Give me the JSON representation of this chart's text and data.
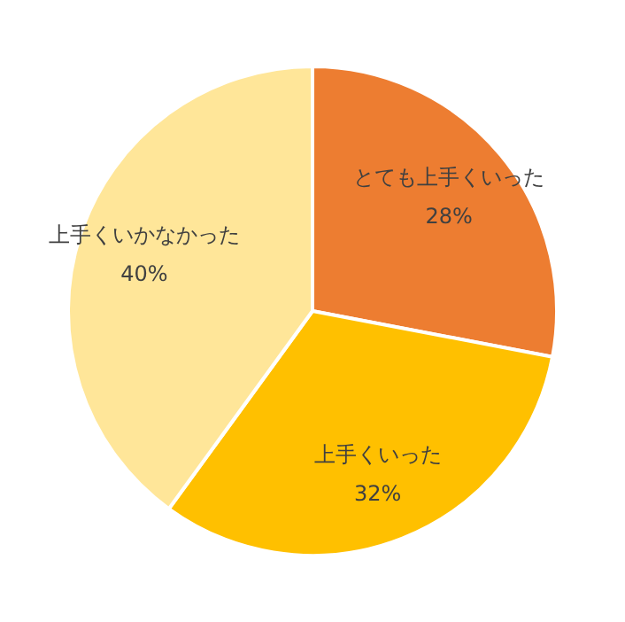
{
  "chart_data": {
    "type": "pie",
    "categories": [
      "とても上手くいった",
      "上手くいった",
      "上手くいかなかった"
    ],
    "values": [
      28,
      32,
      40
    ],
    "colors": [
      "#ed7d31",
      "#ffc000",
      "#ffe699"
    ],
    "value_labels": [
      "28%",
      "32%",
      "40%"
    ]
  }
}
